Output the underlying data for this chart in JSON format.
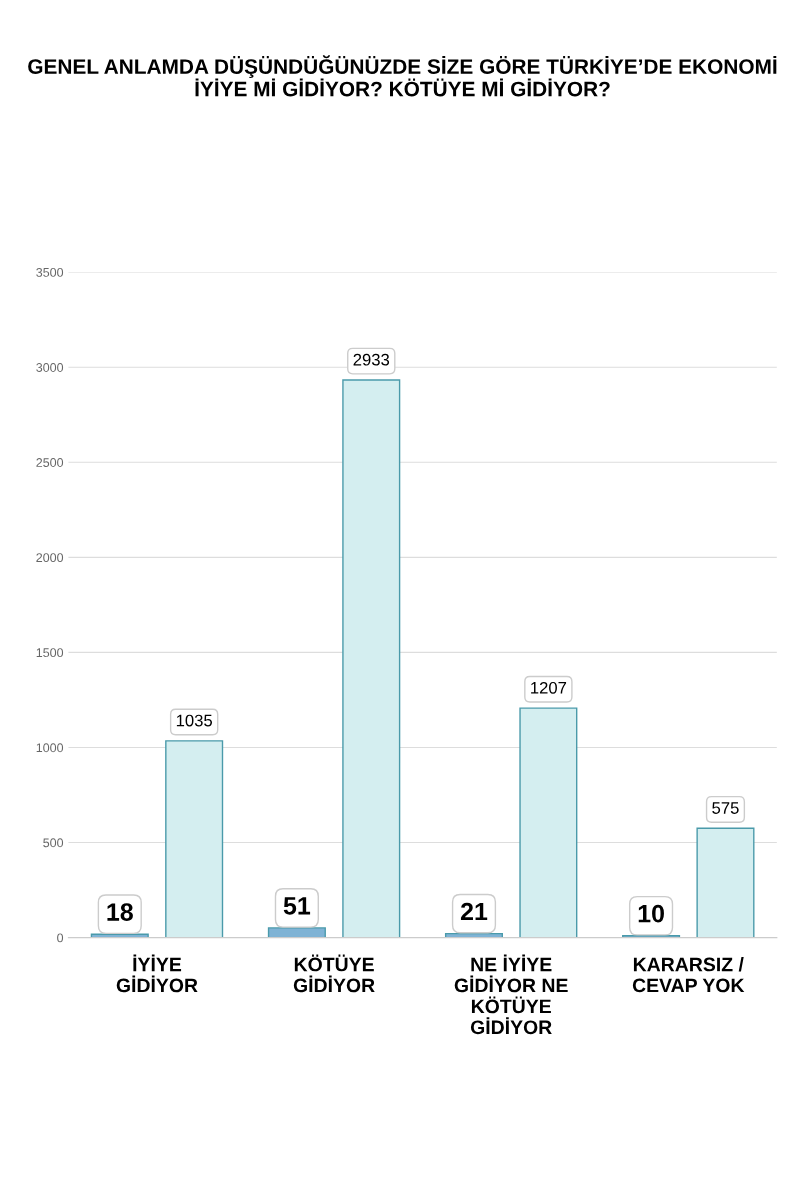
{
  "chart_data": {
    "type": "bar",
    "title": "GENEL ANLAMDA DÜŞÜNDÜĞÜNÜZDE SİZE GÖRE TÜRKİYE’DE EKONOMİ İYİYE Mİ GİDİYOR? KÖTÜYE Mİ GİDİYOR?",
    "categories": [
      "İYİYE\nGİDİYOR",
      "KÖTÜYE\nGİDİYOR",
      "NE İYİYE\nGİDİYOR NE\nKÖTÜYE\nGİDİYOR",
      "KARARSIZ /\nCEVAP YOK"
    ],
    "series": [
      {
        "color": "#7fb3d5",
        "values": [
          18,
          51,
          21,
          10
        ]
      },
      {
        "color": "#d4eef0",
        "values": [
          1035,
          2933,
          1207,
          575
        ]
      }
    ],
    "ylim": [
      0,
      3500
    ],
    "yticks": [
      0,
      500,
      1000,
      1500,
      2000,
      2500,
      3000,
      3500
    ],
    "grid": "y",
    "data_labels": true
  }
}
